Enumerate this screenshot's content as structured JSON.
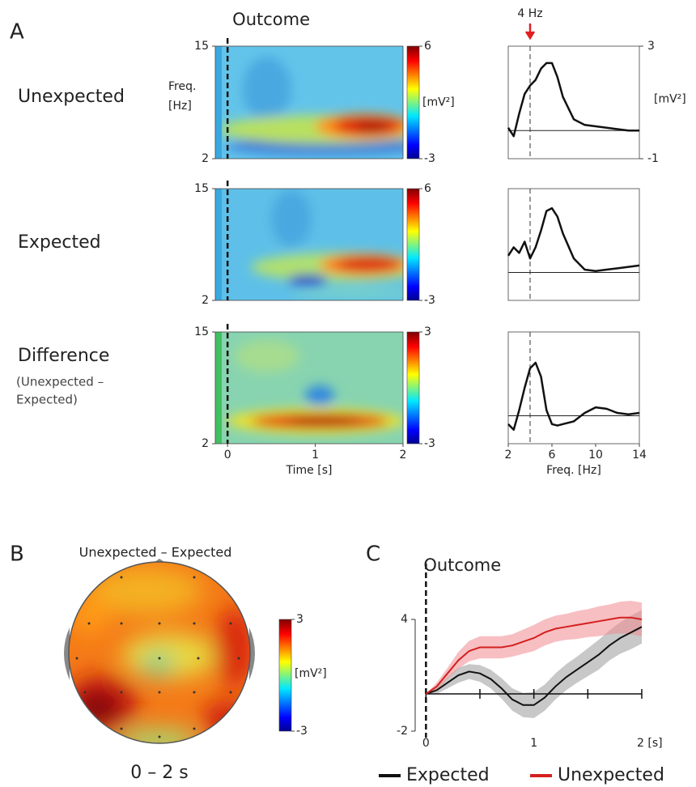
{
  "panel_labels": [
    "A",
    "B",
    "C"
  ],
  "chart_data": [
    {
      "type": "heatmap",
      "label": "Unexpected",
      "title": "Outcome",
      "ylabel": [
        "Freq.",
        "[Hz]"
      ],
      "ylim": [
        2,
        15
      ],
      "yticks": [
        2,
        15
      ],
      "xlim": [
        -0.14,
        2
      ],
      "event_x": 0,
      "clim": [
        -3,
        6
      ],
      "cticks": [
        -3,
        6
      ],
      "clabel": "[mV²]"
    },
    {
      "type": "heatmap",
      "label": "Expected",
      "ylim": [
        2,
        15
      ],
      "yticks": [
        2,
        15
      ],
      "xlim": [
        -0.14,
        2
      ],
      "event_x": 0,
      "clim": [
        -3,
        6
      ],
      "cticks": [
        -3,
        6
      ]
    },
    {
      "type": "heatmap",
      "label": "Difference",
      "label_note": [
        "(Unexpected –",
        "Expected)"
      ],
      "ylim": [
        2,
        15
      ],
      "yticks": [
        2,
        15
      ],
      "xlim": [
        -0.14,
        2
      ],
      "xticks": [
        0,
        1,
        2
      ],
      "xlabel": "Time [s]",
      "event_x": 0,
      "clim": [
        -3,
        3
      ],
      "cticks": [
        -3,
        3
      ]
    },
    {
      "type": "line",
      "x": [
        2,
        2.5,
        3,
        3.5,
        4,
        4.5,
        5,
        5.5,
        6,
        6.5,
        7,
        8,
        9,
        10,
        11,
        12,
        13,
        14
      ],
      "values": [
        0.1,
        -0.2,
        0.6,
        1.3,
        1.6,
        1.8,
        2.2,
        2.4,
        2.4,
        1.9,
        1.2,
        0.4,
        0.2,
        0.15,
        0.1,
        0.05,
        0.0,
        0.0
      ],
      "xlim": [
        2,
        14
      ],
      "ylim": [
        -1,
        3
      ],
      "yticks": [
        -1,
        3
      ],
      "ylabel": "[mV²]",
      "hline": 0,
      "marker_x": 4,
      "annotation": "4 Hz"
    },
    {
      "type": "line",
      "x": [
        2,
        2.5,
        3,
        3.5,
        4,
        4.5,
        5,
        5.5,
        6,
        6.5,
        7,
        8,
        9,
        10,
        11,
        12,
        13,
        14
      ],
      "values": [
        0.6,
        0.9,
        0.7,
        1.1,
        0.5,
        0.9,
        1.5,
        2.2,
        2.3,
        2.0,
        1.4,
        0.5,
        0.1,
        0.05,
        0.1,
        0.15,
        0.2,
        0.25
      ],
      "xlim": [
        2,
        14
      ],
      "ylim": [
        -1,
        3
      ],
      "hline": 0,
      "marker_x": 4
    },
    {
      "type": "line",
      "x": [
        2,
        2.5,
        3,
        3.5,
        4,
        4.5,
        5,
        5.5,
        6,
        6.5,
        7,
        8,
        9,
        10,
        11,
        12,
        13,
        14
      ],
      "values": [
        -0.3,
        -0.5,
        0.2,
        1.0,
        1.7,
        1.9,
        1.4,
        0.2,
        -0.3,
        -0.35,
        -0.3,
        -0.2,
        0.1,
        0.3,
        0.25,
        0.1,
        0.05,
        0.1
      ],
      "xlim": [
        2,
        14
      ],
      "ylim": [
        -1,
        3
      ],
      "xticks": [
        2,
        6,
        10,
        14
      ],
      "xlabel": "Freq. [Hz]",
      "hline": 0,
      "marker_x": 4
    },
    {
      "type": "topomap",
      "title": "Unexpected – Expected",
      "caption": "0 – 2 s",
      "clim": [
        -3,
        3
      ],
      "cticks": [
        -3,
        3
      ],
      "clabel": "[mV²]"
    },
    {
      "type": "band",
      "title": "Outcome",
      "x": [
        0,
        0.1,
        0.2,
        0.3,
        0.4,
        0.5,
        0.6,
        0.7,
        0.8,
        0.9,
        1.0,
        1.1,
        1.2,
        1.3,
        1.4,
        1.5,
        1.6,
        1.7,
        1.8,
        1.9,
        2.0
      ],
      "series": [
        {
          "name": "Expected",
          "color": "#111111",
          "band_color": "#9a9a9a",
          "values": [
            0,
            0.2,
            0.6,
            1.0,
            1.2,
            1.1,
            0.8,
            0.3,
            -0.3,
            -0.6,
            -0.6,
            -0.2,
            0.4,
            0.9,
            1.3,
            1.7,
            2.1,
            2.6,
            3.0,
            3.3,
            3.6
          ],
          "errors": [
            0,
            0.2,
            0.3,
            0.4,
            0.4,
            0.45,
            0.5,
            0.55,
            0.6,
            0.65,
            0.7,
            0.7,
            0.7,
            0.7,
            0.7,
            0.75,
            0.8,
            0.8,
            0.85,
            0.9,
            0.9
          ]
        },
        {
          "name": "Unexpected",
          "color": "#d42020",
          "band_color": "#f08a90",
          "values": [
            0,
            0.4,
            1.1,
            1.8,
            2.3,
            2.5,
            2.5,
            2.5,
            2.6,
            2.8,
            3.0,
            3.3,
            3.5,
            3.6,
            3.7,
            3.8,
            3.9,
            4.0,
            4.1,
            4.1,
            4.0
          ],
          "errors": [
            0,
            0.2,
            0.3,
            0.45,
            0.55,
            0.6,
            0.6,
            0.6,
            0.6,
            0.65,
            0.7,
            0.7,
            0.7,
            0.7,
            0.75,
            0.75,
            0.8,
            0.8,
            0.85,
            0.9,
            0.9
          ]
        }
      ],
      "xlim": [
        -0.1,
        2
      ],
      "ylim": [
        -2,
        7
      ],
      "xticks": [
        0,
        1,
        {
          "value": 2,
          "label": "2 [s]"
        }
      ],
      "xminor_ticks": [
        0.5,
        1.5
      ],
      "yticks": [
        -2,
        4
      ],
      "event_x": 0
    }
  ]
}
